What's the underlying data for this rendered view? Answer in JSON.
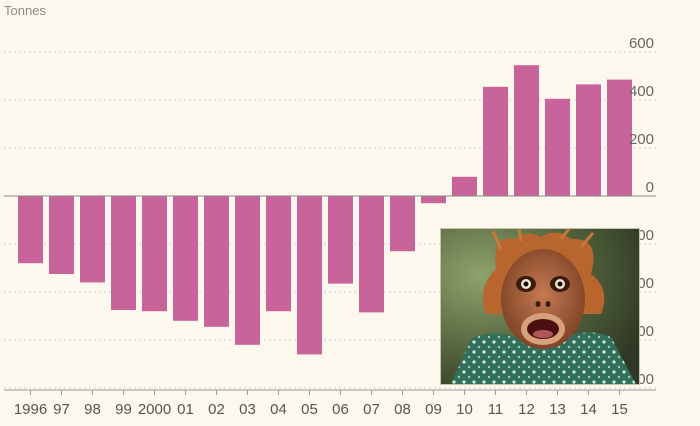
{
  "chart_data": {
    "type": "bar",
    "title": "",
    "xlabel": "",
    "ylabel": "Tonnes",
    "categories": [
      "1996",
      "97",
      "98",
      "99",
      "2000",
      "01",
      "02",
      "03",
      "04",
      "05",
      "06",
      "07",
      "08",
      "09",
      "10",
      "11",
      "12",
      "13",
      "14",
      "15"
    ],
    "values": [
      -280,
      -325,
      -360,
      -475,
      -480,
      -520,
      -545,
      -620,
      -480,
      -660,
      -365,
      -485,
      -230,
      -30,
      80,
      455,
      545,
      405,
      465,
      485
    ],
    "yticks": [
      600,
      400,
      200,
      0,
      -200,
      -400,
      -600,
      -800
    ],
    "ylim": [
      -800,
      700
    ],
    "grid": true,
    "bar_color": "#c8649a"
  },
  "photo": {
    "subject": "orangutan-face-photo"
  }
}
